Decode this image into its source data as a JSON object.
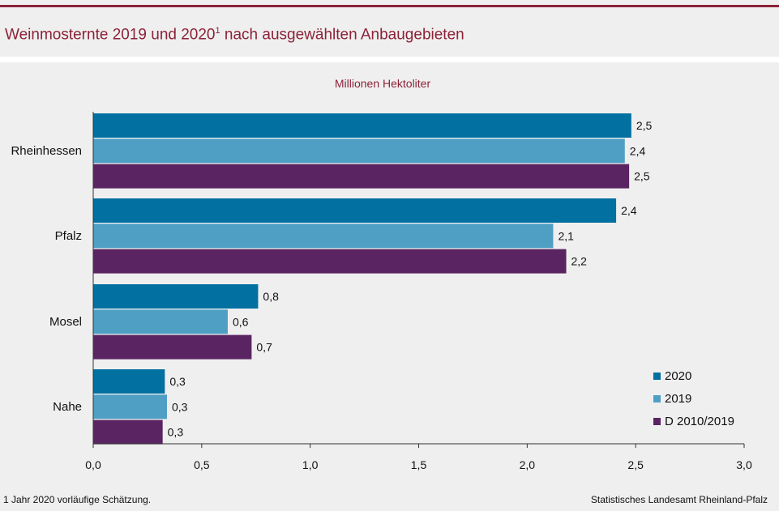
{
  "chart_data": {
    "type": "bar",
    "orientation": "horizontal",
    "title": "Weinmosternte 2019 und 2020",
    "title_sup": "1",
    "title_rest": " nach ausgewählten Anbaugebieten",
    "unit_label": "Millionen Hektoliter",
    "categories": [
      "Rheinhessen",
      "Pfalz",
      "Mosel",
      "Nahe"
    ],
    "series": [
      {
        "name": "2020",
        "color": "#0270a0",
        "values": [
          2.48,
          2.41,
          0.76,
          0.33
        ],
        "labels": [
          "2,5",
          "2,4",
          "0,8",
          "0,3"
        ]
      },
      {
        "name": "2019",
        "color": "#4f9fc4",
        "values": [
          2.45,
          2.12,
          0.62,
          0.34
        ],
        "labels": [
          "2,4",
          "2,1",
          "0,6",
          "0,3"
        ]
      },
      {
        "name": "D 2010/2019",
        "color": "#5a2462",
        "values": [
          2.47,
          2.18,
          0.73,
          0.32
        ],
        "labels": [
          "2,5",
          "2,2",
          "0,7",
          "0,3"
        ]
      }
    ],
    "xlim": [
      0,
      3.0
    ],
    "xticks": [
      0,
      0.5,
      1.0,
      1.5,
      2.0,
      2.5,
      3.0
    ],
    "xtick_labels": [
      "0,0",
      "0,5",
      "1,0",
      "1,5",
      "2,0",
      "2,5",
      "3,0"
    ],
    "legend_position": "bottom-right",
    "grid": false
  },
  "footer": {
    "note": "1 Jahr 2020 vorläufige  Schätzung.",
    "source": "Statistisches Landesamt Rheinland-Pfalz"
  }
}
